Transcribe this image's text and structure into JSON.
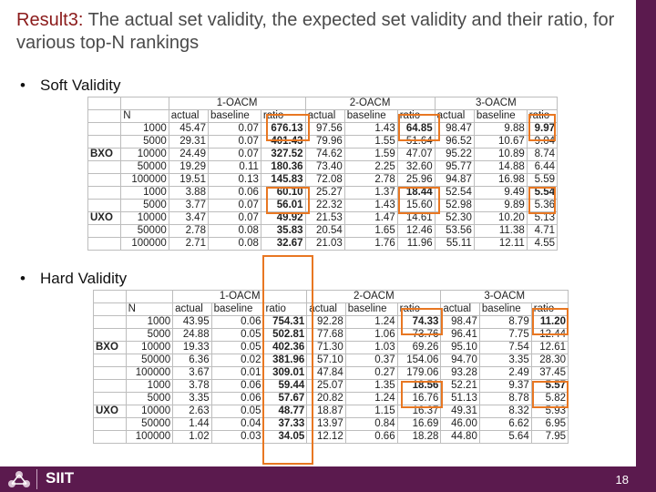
{
  "slide": {
    "title_lead": "Result3:",
    "title_rest": " The actual set validity, the expected set validity and their ratio, for various top-N rankings",
    "bullet": "•",
    "footer_name": "SIIT",
    "page_number": "18",
    "colors": {
      "title_lead": "#8b1a1a",
      "rail": "#5b1a4e",
      "highlight": "#e87722"
    }
  },
  "soft": {
    "heading": "Soft Validity",
    "groups": [
      "1-OACM",
      "2-OACM",
      "3-OACM"
    ],
    "col_n": "N",
    "cols": [
      "actual",
      "baseline",
      "ratio"
    ],
    "blocks": [
      {
        "label": "BXO",
        "rows": [
          [
            "1000",
            "45.47",
            "0.07",
            "676.13",
            "97.56",
            "1.43",
            "64.85",
            "98.47",
            "9.88",
            "9.97"
          ],
          [
            "5000",
            "29.31",
            "0.07",
            "401.43",
            "79.96",
            "1.55",
            "51.64",
            "96.52",
            "10.67",
            "9.04"
          ],
          [
            "10000",
            "24.49",
            "0.07",
            "327.52",
            "74.62",
            "1.59",
            "47.07",
            "95.22",
            "10.89",
            "8.74"
          ],
          [
            "50000",
            "19.29",
            "0.11",
            "180.36",
            "73.40",
            "2.25",
            "32.60",
            "95.77",
            "14.88",
            "6.44"
          ],
          [
            "100000",
            "19.51",
            "0.13",
            "145.83",
            "72.08",
            "2.78",
            "25.96",
            "94.87",
            "16.98",
            "5.59"
          ]
        ]
      },
      {
        "label": "UXO",
        "rows": [
          [
            "1000",
            "3.88",
            "0.06",
            "60.10",
            "25.27",
            "1.37",
            "18.44",
            "52.54",
            "9.49",
            "5.54"
          ],
          [
            "5000",
            "3.77",
            "0.07",
            "56.01",
            "22.32",
            "1.43",
            "15.60",
            "52.98",
            "9.89",
            "5.36"
          ],
          [
            "10000",
            "3.47",
            "0.07",
            "49.92",
            "21.53",
            "1.47",
            "14.61",
            "52.30",
            "10.20",
            "5.13"
          ],
          [
            "50000",
            "2.78",
            "0.08",
            "35.83",
            "20.54",
            "1.65",
            "12.46",
            "53.56",
            "11.38",
            "4.71"
          ],
          [
            "100000",
            "2.71",
            "0.08",
            "32.67",
            "21.03",
            "1.76",
            "11.96",
            "55.11",
            "12.11",
            "4.55"
          ]
        ]
      }
    ]
  },
  "hard": {
    "heading": "Hard Validity",
    "groups": [
      "1-OACM",
      "2-OACM",
      "3-OACM"
    ],
    "col_n": "N",
    "cols": [
      "actual",
      "baseline",
      "ratio"
    ],
    "blocks": [
      {
        "label": "BXO",
        "rows": [
          [
            "1000",
            "43.95",
            "0.06",
            "754.31",
            "92.28",
            "1.24",
            "74.33",
            "98.47",
            "8.79",
            "11.20"
          ],
          [
            "5000",
            "24.88",
            "0.05",
            "502.81",
            "77.68",
            "1.06",
            "73.76",
            "96.41",
            "7.75",
            "12.44"
          ],
          [
            "10000",
            "19.33",
            "0.05",
            "402.36",
            "71.30",
            "1.03",
            "69.26",
            "95.10",
            "7.54",
            "12.61"
          ],
          [
            "50000",
            "6.36",
            "0.02",
            "381.96",
            "57.10",
            "0.37",
            "154.06",
            "94.70",
            "3.35",
            "28.30"
          ],
          [
            "100000",
            "3.67",
            "0.01",
            "309.01",
            "47.84",
            "0.27",
            "179.06",
            "93.28",
            "2.49",
            "37.45"
          ]
        ]
      },
      {
        "label": "UXO",
        "rows": [
          [
            "1000",
            "3.78",
            "0.06",
            "59.44",
            "25.07",
            "1.35",
            "18.56",
            "52.21",
            "9.37",
            "5.57"
          ],
          [
            "5000",
            "3.35",
            "0.06",
            "57.67",
            "20.82",
            "1.24",
            "16.76",
            "51.13",
            "8.78",
            "5.82"
          ],
          [
            "10000",
            "2.63",
            "0.05",
            "48.77",
            "18.87",
            "1.15",
            "16.37",
            "49.31",
            "8.32",
            "5.93"
          ],
          [
            "50000",
            "1.44",
            "0.04",
            "37.33",
            "13.97",
            "0.84",
            "16.69",
            "46.00",
            "6.62",
            "6.95"
          ],
          [
            "100000",
            "1.02",
            "0.03",
            "34.05",
            "12.12",
            "0.66",
            "18.28",
            "44.80",
            "5.64",
            "7.95"
          ]
        ]
      }
    ]
  }
}
